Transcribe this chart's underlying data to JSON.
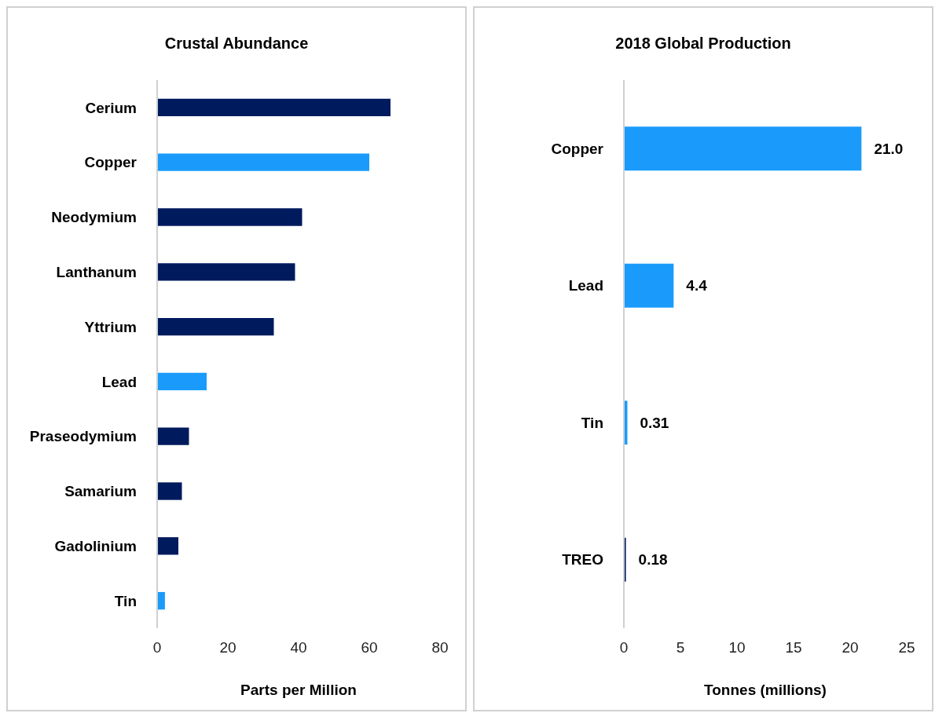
{
  "chart_data": [
    {
      "type": "bar",
      "orientation": "horizontal",
      "title": "Crustal Abundance",
      "xlabel": "Parts per Million",
      "categories": [
        "Cerium",
        "Copper",
        "Neodymium",
        "Lanthanum",
        "Yttrium",
        "Lead",
        "Praseodymium",
        "Samarium",
        "Gadolinium",
        "Tin"
      ],
      "values": [
        66,
        60,
        41,
        39,
        33,
        14,
        9,
        7,
        6,
        2.2
      ],
      "colors": [
        "#001a5e",
        "#1a9bfc",
        "#001a5e",
        "#001a5e",
        "#001a5e",
        "#1a9bfc",
        "#001a5e",
        "#001a5e",
        "#001a5e",
        "#1a9bfc"
      ],
      "xlim": [
        0,
        80
      ],
      "xticks": [
        0,
        20,
        40,
        60,
        80
      ],
      "grid": false
    },
    {
      "type": "bar",
      "orientation": "horizontal",
      "title": "2018 Global Production",
      "xlabel": "Tonnes (millions)",
      "categories": [
        "Copper",
        "Lead",
        "Tin",
        "TREO"
      ],
      "values": [
        21.0,
        4.4,
        0.31,
        0.18
      ],
      "value_labels": [
        "21.0",
        "4.4",
        "0.31",
        "0.18"
      ],
      "colors": [
        "#1a9bfc",
        "#1a9bfc",
        "#1a9bfc",
        "#001a5e"
      ],
      "xlim": [
        0,
        25
      ],
      "xticks": [
        0,
        5,
        10,
        15,
        20,
        25
      ],
      "grid": false
    }
  ]
}
